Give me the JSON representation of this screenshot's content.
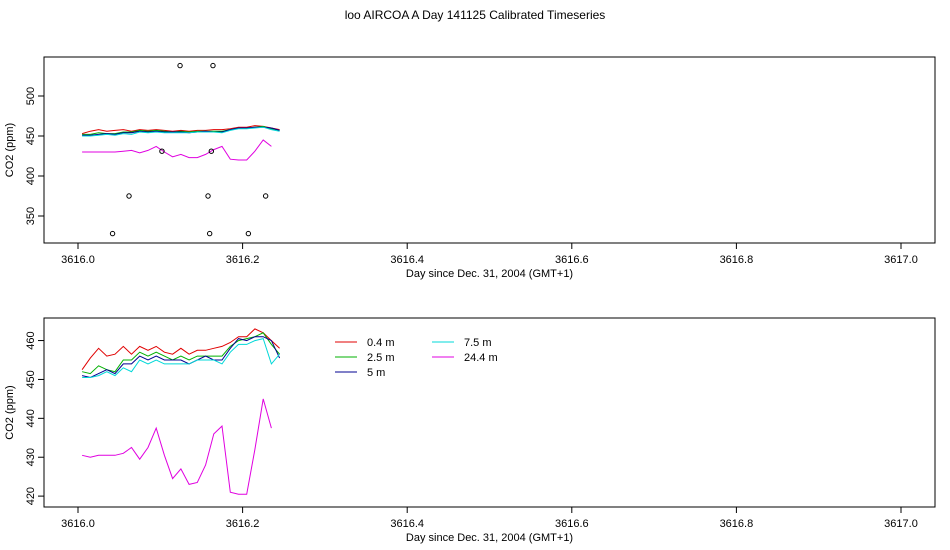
{
  "title": "loo AIRCOA A  Day 141125  Calibrated Timeseries",
  "colors": {
    "0.4 m": "#e00000",
    "2.5 m": "#00b000",
    "5 m": "#000090",
    "7.5 m": "#00d8d8",
    "24.4 m": "#e000e0"
  },
  "chart_data": [
    {
      "type": "line",
      "title": "",
      "xlabel": "Day since Dec. 31, 2004 (GMT+1)",
      "ylabel": "CO2 (ppm)",
      "xlim": [
        3616.0,
        3617.0
      ],
      "ylim": [
        325,
        540
      ],
      "x_ticks": [
        "3616.0",
        "3616.2",
        "3616.4",
        "3616.6",
        "3616.8",
        "3617.0"
      ],
      "y_ticks": [
        "350",
        "400",
        "450",
        "500"
      ],
      "legend": false,
      "x": [
        3616.005,
        3616.015,
        3616.025,
        3616.035,
        3616.045,
        3616.055,
        3616.065,
        3616.075,
        3616.085,
        3616.095,
        3616.105,
        3616.115,
        3616.125,
        3616.135,
        3616.145,
        3616.155,
        3616.165,
        3616.175,
        3616.185,
        3616.195,
        3616.205,
        3616.215,
        3616.225,
        3616.235,
        3616.245
      ],
      "series": [
        {
          "name": "0.4 m",
          "values": [
            453,
            456,
            458,
            456,
            457,
            458,
            456,
            458,
            457,
            458,
            457,
            456,
            457,
            456,
            457,
            457,
            458,
            458,
            459,
            461,
            461,
            463,
            462,
            460,
            458
          ]
        },
        {
          "name": "2.5 m",
          "values": [
            452,
            452,
            454,
            453,
            453,
            455,
            455,
            457,
            456,
            457,
            456,
            455,
            456,
            455,
            456,
            456,
            456,
            456,
            458,
            460,
            460,
            461,
            462,
            459,
            457
          ]
        },
        {
          "name": "5 m",
          "values": [
            451,
            451,
            452,
            453,
            452,
            454,
            454,
            456,
            455,
            456,
            455,
            455,
            455,
            454,
            455,
            456,
            455,
            455,
            458,
            460,
            460,
            461,
            461,
            460,
            457
          ]
        },
        {
          "name": "7.5 m",
          "values": [
            450,
            450,
            451,
            452,
            451,
            453,
            452,
            455,
            454,
            455,
            454,
            454,
            454,
            454,
            455,
            455,
            455,
            454,
            457,
            459,
            459,
            460,
            461,
            458,
            456
          ]
        },
        {
          "name": "24.4 m",
          "values": [
            430,
            430,
            430,
            430,
            430,
            431,
            432,
            429,
            432,
            437,
            430,
            424,
            427,
            423,
            423,
            427,
            433,
            437,
            421,
            420,
            420,
            431,
            445,
            437,
            null
          ]
        }
      ],
      "points": {
        "x": [
          3616.042,
          3616.062,
          3616.102,
          3616.124,
          3616.158,
          3616.16,
          3616.162,
          3616.164,
          3616.207,
          3616.228
        ],
        "y": [
          328,
          375,
          431,
          538,
          375,
          328,
          431,
          538,
          328,
          375
        ]
      }
    },
    {
      "type": "line",
      "title": "",
      "xlabel": "Day since Dec. 31, 2004 (GMT+1)",
      "ylabel": "CO2 (ppm)",
      "xlim": [
        3616.0,
        3617.0
      ],
      "ylim": [
        419,
        464
      ],
      "x_ticks": [
        "3616.0",
        "3616.2",
        "3616.4",
        "3616.6",
        "3616.8",
        "3617.0"
      ],
      "y_ticks": [
        "420",
        "430",
        "440",
        "450",
        "460"
      ],
      "legend": "top-left",
      "x": [
        3616.005,
        3616.015,
        3616.025,
        3616.035,
        3616.045,
        3616.055,
        3616.065,
        3616.075,
        3616.085,
        3616.095,
        3616.105,
        3616.115,
        3616.125,
        3616.135,
        3616.145,
        3616.155,
        3616.165,
        3616.175,
        3616.185,
        3616.195,
        3616.205,
        3616.215,
        3616.225,
        3616.235,
        3616.245
      ],
      "series": [
        {
          "name": "0.4 m",
          "values": [
            452.5,
            455.5,
            458,
            456,
            456.5,
            458.5,
            456.5,
            458.5,
            457.5,
            458.5,
            457,
            456.5,
            458,
            456.5,
            457.5,
            457.5,
            458,
            458.5,
            459.5,
            461,
            461,
            463,
            462,
            460,
            458
          ]
        },
        {
          "name": "2.5 m",
          "values": [
            452,
            451.5,
            453.5,
            452.5,
            452,
            455,
            455,
            457,
            456,
            457,
            456,
            455,
            456,
            455,
            456,
            456,
            456,
            456,
            458.5,
            460,
            460.5,
            461,
            462,
            459,
            456.5
          ]
        },
        {
          "name": "5 m",
          "values": [
            451,
            450.5,
            451.5,
            452.5,
            451.5,
            454,
            454,
            456,
            455,
            456,
            455,
            455,
            455,
            454,
            455,
            456,
            455,
            455,
            458,
            460.5,
            460,
            461,
            461,
            460,
            455.5
          ]
        },
        {
          "name": "7.5 m",
          "values": [
            450.5,
            450.5,
            451,
            452,
            451,
            453,
            452,
            455,
            454,
            455,
            454,
            454,
            454,
            454,
            455,
            455,
            455,
            454,
            457,
            459,
            459,
            460,
            460.5,
            454,
            456.5
          ]
        },
        {
          "name": "24.4 m",
          "values": [
            430.5,
            430,
            430.5,
            430.5,
            430.5,
            431,
            432.5,
            429.5,
            432.5,
            437.5,
            430.5,
            424.5,
            427,
            423,
            423.5,
            428,
            436,
            438,
            421,
            420.5,
            420.5,
            432,
            445,
            437.5,
            null
          ]
        }
      ]
    }
  ]
}
